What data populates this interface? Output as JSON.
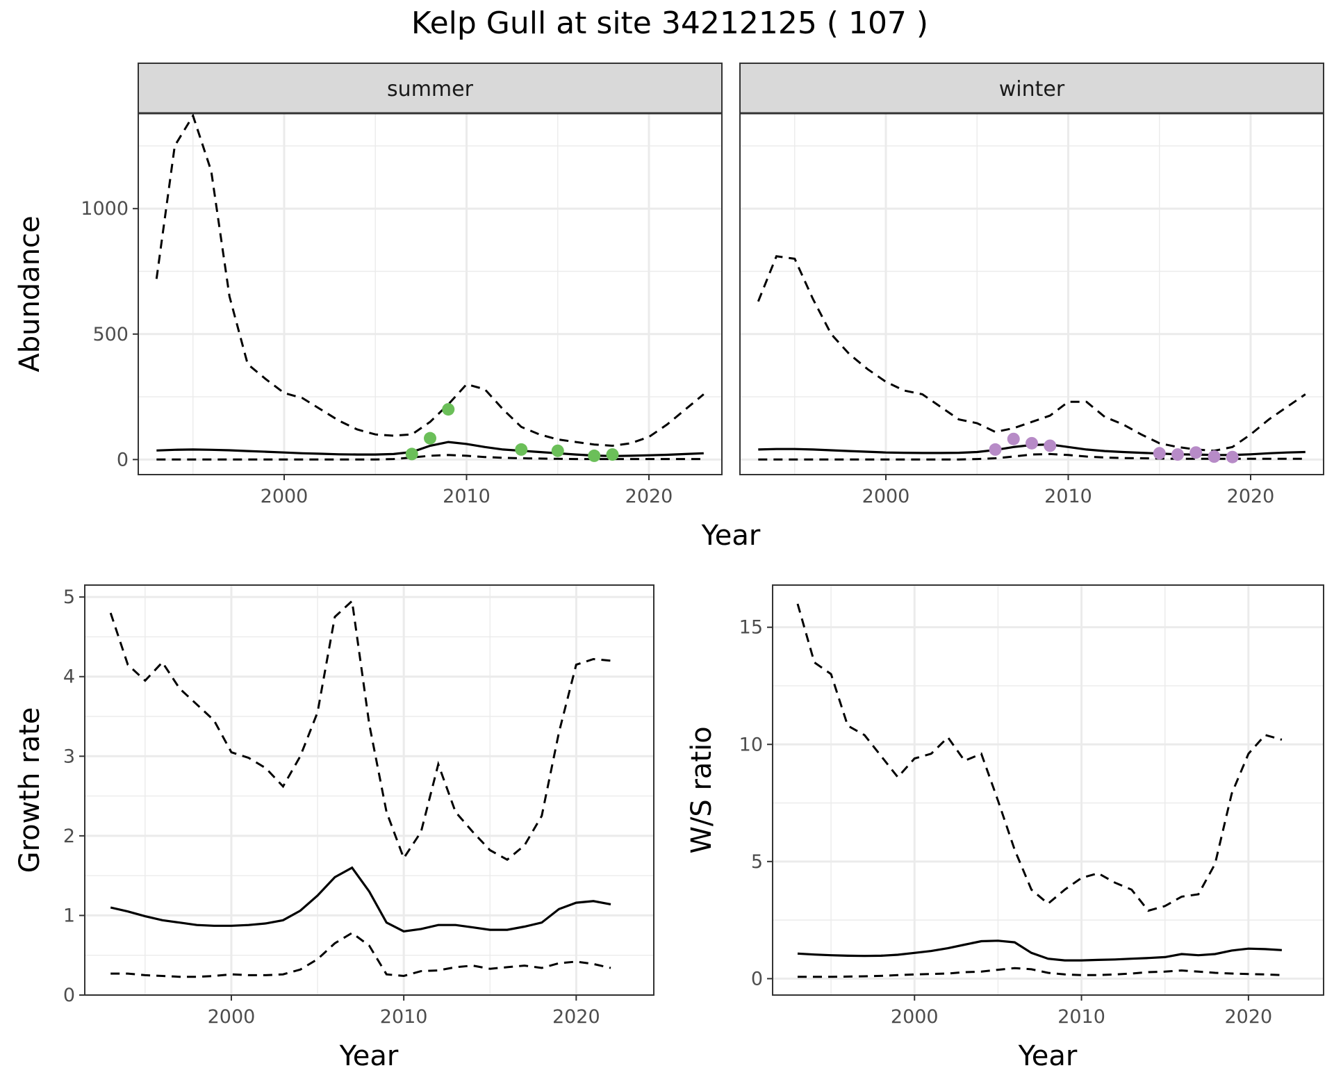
{
  "title": "Kelp Gull at site 34212125 ( 107 )",
  "colors": {
    "summer_points": "#6BBF59",
    "winter_points": "#B78BC7",
    "line": "#000000",
    "strip_bg": "#d9d9d9",
    "grid": "#ebebeb"
  },
  "chart_data": [
    {
      "id": "abundance",
      "type": "line",
      "xlabel": "Year",
      "ylabel": "Abundance",
      "xlim": [
        1992,
        2024
      ],
      "ylim": [
        -60,
        1380
      ],
      "xticks": [
        2000,
        2010,
        2020
      ],
      "yticks": [
        0,
        500,
        1000
      ],
      "legend": "none",
      "facets": [
        {
          "label": "summer",
          "mean": {
            "x": [
              1993,
              1994,
              1995,
              1996,
              1997,
              1998,
              1999,
              2000,
              2001,
              2002,
              2003,
              2004,
              2005,
              2006,
              2007,
              2008,
              2009,
              2010,
              2011,
              2012,
              2013,
              2014,
              2015,
              2016,
              2017,
              2018,
              2019,
              2020,
              2021,
              2022,
              2023
            ],
            "y": [
              36,
              39,
              40,
              39,
              37,
              34,
              31,
              28,
              25,
              23,
              21,
              20,
              20,
              22,
              30,
              55,
              70,
              62,
              50,
              40,
              35,
              30,
              25,
              20,
              16,
              14,
              15,
              17,
              19,
              22,
              25
            ]
          },
          "upper": {
            "x": [
              1993,
              1994,
              1995,
              1996,
              1997,
              1998,
              1999,
              2000,
              2001,
              2002,
              2003,
              2004,
              2005,
              2006,
              2007,
              2008,
              2009,
              2010,
              2011,
              2012,
              2013,
              2014,
              2015,
              2016,
              2017,
              2018,
              2019,
              2020,
              2021,
              2022,
              2023
            ],
            "y": [
              720,
              1250,
              1370,
              1150,
              650,
              380,
              320,
              265,
              245,
              200,
              155,
              120,
              100,
              95,
              100,
              150,
              220,
              300,
              280,
              200,
              130,
              100,
              80,
              70,
              60,
              55,
              65,
              90,
              140,
              200,
              260
            ]
          },
          "lower": {
            "x": [
              1993,
              1994,
              1995,
              1996,
              1997,
              1998,
              1999,
              2000,
              2001,
              2002,
              2003,
              2004,
              2005,
              2006,
              2007,
              2008,
              2009,
              2010,
              2011,
              2012,
              2013,
              2014,
              2015,
              2016,
              2017,
              2018,
              2019,
              2020,
              2021,
              2022,
              2023
            ],
            "y": [
              0,
              0,
              0,
              0,
              0,
              0,
              0,
              0,
              0,
              0,
              0,
              0,
              0,
              2,
              8,
              15,
              18,
              15,
              10,
              7,
              5,
              4,
              3,
              2,
              2,
              2,
              2,
              2,
              2,
              2,
              2
            ]
          },
          "points": {
            "x": [
              2007,
              2008,
              2009,
              2013,
              2015,
              2017,
              2018
            ],
            "y": [
              22,
              85,
              200,
              40,
              35,
              15,
              20
            ],
            "color": "#6BBF59"
          }
        },
        {
          "label": "winter",
          "mean": {
            "x": [
              1993,
              1994,
              1995,
              1996,
              1997,
              1998,
              1999,
              2000,
              2001,
              2002,
              2003,
              2004,
              2005,
              2006,
              2007,
              2008,
              2009,
              2010,
              2011,
              2012,
              2013,
              2014,
              2015,
              2016,
              2017,
              2018,
              2019,
              2020,
              2021,
              2022,
              2023
            ],
            "y": [
              40,
              42,
              42,
              40,
              37,
              34,
              31,
              28,
              27,
              26,
              26,
              27,
              30,
              38,
              50,
              58,
              60,
              50,
              40,
              34,
              30,
              27,
              24,
              21,
              20,
              18,
              18,
              21,
              25,
              28,
              30
            ]
          },
          "upper": {
            "x": [
              1993,
              1994,
              1995,
              1996,
              1997,
              1998,
              1999,
              2000,
              2001,
              2002,
              2003,
              2004,
              2005,
              2006,
              2007,
              2008,
              2009,
              2010,
              2011,
              2012,
              2013,
              2014,
              2015,
              2016,
              2017,
              2018,
              2019,
              2020,
              2021,
              2022,
              2023
            ],
            "y": [
              630,
              810,
              800,
              640,
              500,
              420,
              360,
              310,
              275,
              260,
              210,
              160,
              145,
              110,
              125,
              150,
              175,
              230,
              230,
              170,
              140,
              100,
              65,
              50,
              40,
              35,
              50,
              100,
              160,
              210,
              260
            ]
          },
          "lower": {
            "x": [
              1993,
              1994,
              1995,
              1996,
              1997,
              1998,
              1999,
              2000,
              2001,
              2002,
              2003,
              2004,
              2005,
              2006,
              2007,
              2008,
              2009,
              2010,
              2011,
              2012,
              2013,
              2014,
              2015,
              2016,
              2017,
              2018,
              2019,
              2020,
              2021,
              2022,
              2023
            ],
            "y": [
              0,
              0,
              0,
              0,
              0,
              0,
              0,
              0,
              0,
              0,
              0,
              0,
              2,
              5,
              12,
              20,
              22,
              18,
              12,
              8,
              6,
              5,
              4,
              3,
              3,
              3,
              3,
              3,
              3,
              3,
              3
            ]
          },
          "points": {
            "x": [
              2006,
              2007,
              2008,
              2009,
              2015,
              2016,
              2017,
              2018,
              2019
            ],
            "y": [
              40,
              82,
              65,
              55,
              25,
              20,
              28,
              12,
              10
            ],
            "color": "#B78BC7"
          }
        }
      ]
    },
    {
      "id": "growth-rate",
      "type": "line",
      "xlabel": "Year",
      "ylabel": "Growth rate",
      "xlim": [
        1991.5,
        2024.5
      ],
      "ylim": [
        0,
        5.15
      ],
      "xticks": [
        2000,
        2010,
        2020
      ],
      "yticks": [
        0,
        1,
        2,
        3,
        4,
        5
      ],
      "legend": "none",
      "mean": {
        "x": [
          1993,
          1994,
          1995,
          1996,
          1997,
          1998,
          1999,
          2000,
          2001,
          2002,
          2003,
          2004,
          2005,
          2006,
          2007,
          2008,
          2009,
          2010,
          2011,
          2012,
          2013,
          2014,
          2015,
          2016,
          2017,
          2018,
          2019,
          2020,
          2021,
          2022
        ],
        "y": [
          1.1,
          1.05,
          0.99,
          0.94,
          0.91,
          0.88,
          0.87,
          0.87,
          0.88,
          0.9,
          0.94,
          1.06,
          1.25,
          1.48,
          1.6,
          1.3,
          0.91,
          0.8,
          0.83,
          0.88,
          0.88,
          0.85,
          0.82,
          0.82,
          0.86,
          0.91,
          1.08,
          1.16,
          1.18,
          1.14
        ]
      },
      "upper": {
        "x": [
          1993,
          1994,
          1995,
          1996,
          1997,
          1998,
          1999,
          2000,
          2001,
          2002,
          2003,
          2004,
          2005,
          2006,
          2007,
          2008,
          2009,
          2010,
          2011,
          2012,
          2013,
          2014,
          2015,
          2016,
          2017,
          2018,
          2019,
          2020,
          2021,
          2022
        ],
        "y": [
          4.8,
          4.15,
          3.95,
          4.18,
          3.85,
          3.65,
          3.45,
          3.05,
          2.98,
          2.85,
          2.62,
          3.0,
          3.55,
          4.75,
          4.95,
          3.4,
          2.3,
          1.72,
          2.05,
          2.9,
          2.3,
          2.05,
          1.82,
          1.7,
          1.88,
          2.25,
          3.3,
          4.15,
          4.22,
          4.2
        ]
      },
      "lower": {
        "x": [
          1993,
          1994,
          1995,
          1996,
          1997,
          1998,
          1999,
          2000,
          2001,
          2002,
          2003,
          2004,
          2005,
          2006,
          2007,
          2008,
          2009,
          2010,
          2011,
          2012,
          2013,
          2014,
          2015,
          2016,
          2017,
          2018,
          2019,
          2020,
          2021,
          2022
        ],
        "y": [
          0.27,
          0.27,
          0.25,
          0.24,
          0.23,
          0.23,
          0.24,
          0.26,
          0.25,
          0.25,
          0.26,
          0.32,
          0.45,
          0.65,
          0.78,
          0.62,
          0.26,
          0.24,
          0.3,
          0.31,
          0.35,
          0.37,
          0.33,
          0.35,
          0.37,
          0.34,
          0.4,
          0.42,
          0.39,
          0.34
        ]
      }
    },
    {
      "id": "ws-ratio",
      "type": "line",
      "xlabel": "Year",
      "ylabel": "W/S ratio",
      "xlim": [
        1991.5,
        2024.5
      ],
      "ylim": [
        -0.7,
        16.8
      ],
      "xticks": [
        2000,
        2010,
        2020
      ],
      "yticks": [
        0,
        5,
        10,
        15
      ],
      "legend": "none",
      "mean": {
        "x": [
          1993,
          1994,
          1995,
          1996,
          1997,
          1998,
          1999,
          2000,
          2001,
          2002,
          2003,
          2004,
          2005,
          2006,
          2007,
          2008,
          2009,
          2010,
          2011,
          2012,
          2013,
          2014,
          2015,
          2016,
          2017,
          2018,
          2019,
          2020,
          2021,
          2022
        ],
        "y": [
          1.07,
          1.03,
          1.0,
          0.98,
          0.97,
          0.98,
          1.02,
          1.1,
          1.18,
          1.3,
          1.45,
          1.6,
          1.62,
          1.55,
          1.1,
          0.85,
          0.78,
          0.78,
          0.8,
          0.82,
          0.85,
          0.88,
          0.92,
          1.05,
          1.0,
          1.05,
          1.2,
          1.28,
          1.26,
          1.22
        ]
      },
      "upper": {
        "x": [
          1993,
          1994,
          1995,
          1996,
          1997,
          1998,
          1999,
          2000,
          2001,
          2002,
          2003,
          2004,
          2005,
          2006,
          2007,
          2008,
          2009,
          2010,
          2011,
          2012,
          2013,
          2014,
          2015,
          2016,
          2017,
          2018,
          2019,
          2020,
          2021,
          2022
        ],
        "y": [
          16.0,
          13.5,
          13.0,
          10.8,
          10.4,
          9.5,
          8.6,
          9.4,
          9.6,
          10.3,
          9.3,
          9.6,
          7.6,
          5.5,
          3.8,
          3.2,
          3.8,
          4.3,
          4.5,
          4.1,
          3.8,
          2.9,
          3.1,
          3.5,
          3.6,
          4.9,
          7.9,
          9.6,
          10.4,
          10.2
        ]
      },
      "lower": {
        "x": [
          1993,
          1994,
          1995,
          1996,
          1997,
          1998,
          1999,
          2000,
          2001,
          2002,
          2003,
          2004,
          2005,
          2006,
          2007,
          2008,
          2009,
          2010,
          2011,
          2012,
          2013,
          2014,
          2015,
          2016,
          2017,
          2018,
          2019,
          2020,
          2021,
          2022
        ],
        "y": [
          0.08,
          0.08,
          0.08,
          0.09,
          0.1,
          0.12,
          0.15,
          0.18,
          0.2,
          0.22,
          0.28,
          0.3,
          0.38,
          0.45,
          0.4,
          0.25,
          0.18,
          0.15,
          0.15,
          0.18,
          0.22,
          0.28,
          0.3,
          0.35,
          0.3,
          0.25,
          0.22,
          0.2,
          0.18,
          0.15
        ]
      }
    }
  ]
}
